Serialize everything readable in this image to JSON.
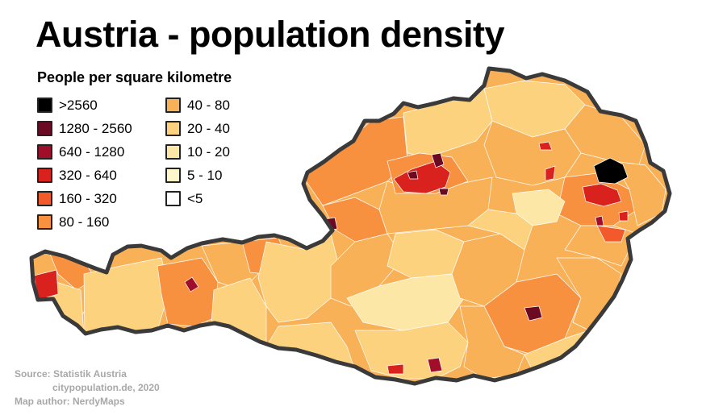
{
  "title": "Austria - population density",
  "legend": {
    "heading": "People per square kilometre",
    "items": [
      {
        "label": ">2560",
        "color": "#000000"
      },
      {
        "label": "1280 - 2560",
        "color": "#6b0a22"
      },
      {
        "label": "640 - 1280",
        "color": "#a10e2a"
      },
      {
        "label": "320 - 640",
        "color": "#d9211e"
      },
      {
        "label": "160 - 320",
        "color": "#f25a2c"
      },
      {
        "label": "80 - 160",
        "color": "#f7913f"
      },
      {
        "label": "40 - 80",
        "color": "#f9b157"
      },
      {
        "label": "20 - 40",
        "color": "#fcd27f"
      },
      {
        "label": "10 - 20",
        "color": "#fde7a6"
      },
      {
        "label": "5 - 10",
        "color": "#fff7c9"
      },
      {
        "label": "<5",
        "color": "#ffffff"
      }
    ]
  },
  "credits": {
    "source": "Source: Statistik Austria",
    "source2": "citypopulation.de, 2020",
    "author": "Map author: NerdyMaps"
  },
  "colors": {
    "border": "#3a3a3a",
    "region_border": "#ffffff",
    "credits_text": "#a8a8a8"
  }
}
